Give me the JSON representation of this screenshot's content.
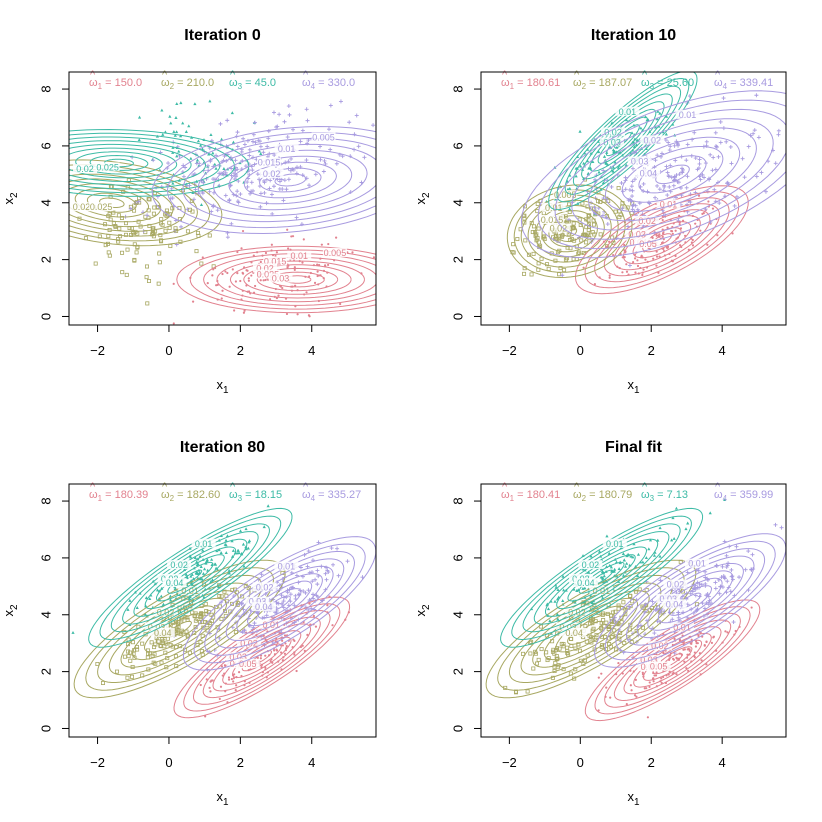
{
  "colors": {
    "c1": "#E2828F",
    "c2": "#A8A862",
    "c3": "#3DBBA6",
    "c4": "#A89BE0"
  },
  "chart_data": {
    "type": "scatter",
    "xlim": [
      -2.8,
      5.8
    ],
    "ylim": [
      -0.3,
      8.6
    ],
    "x_ticks": [
      -2,
      0,
      2,
      4
    ],
    "y_ticks": [
      0,
      2,
      4,
      6,
      8
    ],
    "xlabel": "x",
    "xlabel_sub": "1",
    "ylabel": "x",
    "ylabel_sub": "2",
    "panels": [
      {
        "title": "Iteration 0",
        "weights": [
          {
            "symbol": "ω",
            "sub": "1",
            "value": "150.0",
            "color": "c1"
          },
          {
            "symbol": "ω",
            "sub": "2",
            "value": "210.0",
            "color": "c2"
          },
          {
            "symbol": "ω",
            "sub": "3",
            "value": "45.0",
            "color": "c3"
          },
          {
            "symbol": "ω",
            "sub": "4",
            "value": "330.0",
            "color": "c4"
          }
        ],
        "components": [
          {
            "color": "c1",
            "mean": [
              3.6,
              1.3
            ],
            "sx": 1.3,
            "sy": 0.45,
            "angle": 0,
            "levels": [
              "0.005",
              "0.01",
              "0.015",
              "0.02",
              "0.025",
              "0.03"
            ]
          },
          {
            "color": "c2",
            "mean": [
              -1.6,
              4.0
            ],
            "sx": 0.55,
            "sy": 1.2,
            "angle": 80,
            "levels": [
              "0.005",
              "0.01",
              "0.015",
              "0.02",
              "0.025"
            ]
          },
          {
            "color": "c3",
            "mean": [
              -1.4,
              5.4
            ],
            "sx": 0.45,
            "sy": 1.4,
            "angle": 88,
            "levels": [
              "0.005",
              "0.01",
              "0.015",
              "0.02",
              "0.025"
            ]
          },
          {
            "color": "c4",
            "mean": [
              3.4,
              4.8
            ],
            "sx": 1.5,
            "sy": 0.7,
            "angle": 8,
            "levels": [
              "0.005",
              "0.01",
              "0.015",
              "0.02"
            ]
          }
        ],
        "clusters": [
          {
            "color": "c1",
            "mean": [
              3.0,
              1.5
            ],
            "sx": 1.2,
            "sy": 0.6,
            "angle": 10,
            "n": 150
          },
          {
            "color": "c2",
            "mean": [
              -0.7,
              3.0
            ],
            "sx": 0.8,
            "sy": 0.7,
            "angle": 40,
            "n": 120
          },
          {
            "color": "c3",
            "mean": [
              0.8,
              6.0
            ],
            "sx": 0.8,
            "sy": 0.9,
            "angle": 40,
            "n": 70
          },
          {
            "color": "c4",
            "mean": [
              2.2,
              5.2
            ],
            "sx": 1.5,
            "sy": 0.8,
            "angle": 20,
            "n": 260
          }
        ]
      },
      {
        "title": "Iteration 10",
        "weights": [
          {
            "symbol": "ω",
            "sub": "1",
            "value": "180.61",
            "color": "c1"
          },
          {
            "symbol": "ω",
            "sub": "2",
            "value": "187.07",
            "color": "c2"
          },
          {
            "symbol": "ω",
            "sub": "3",
            "value": "25.60",
            "color": "c3"
          },
          {
            "symbol": "ω",
            "sub": "4",
            "value": "339.41",
            "color": "c4"
          }
        ],
        "components": [
          {
            "color": "c1",
            "mean": [
              2.3,
              2.7
            ],
            "sx": 1.1,
            "sy": 0.45,
            "angle": 35,
            "levels": [
              "0.01",
              "0.02",
              "0.03",
              "0.04",
              "0.05"
            ]
          },
          {
            "color": "c2",
            "mean": [
              -0.3,
              3.0
            ],
            "sx": 0.7,
            "sy": 0.6,
            "angle": 30,
            "levels": [
              "0.005",
              "0.01",
              "0.015",
              "0.02"
            ]
          },
          {
            "color": "c3",
            "mean": [
              1.2,
              6.2
            ],
            "sx": 1.2,
            "sy": 0.3,
            "angle": 50,
            "levels": [
              "0.01",
              "0.02",
              "0.03"
            ]
          },
          {
            "color": "c4",
            "mean": [
              2.6,
              5.0
            ],
            "sx": 1.8,
            "sy": 0.85,
            "angle": 28,
            "levels": [
              "0.01",
              "0.02",
              "0.03",
              "0.04"
            ]
          }
        ],
        "clusters": [
          {
            "color": "c1",
            "mean": [
              2.3,
              2.6
            ],
            "sx": 1.0,
            "sy": 0.45,
            "angle": 35,
            "n": 150
          },
          {
            "color": "c2",
            "mean": [
              -0.3,
              3.1
            ],
            "sx": 0.8,
            "sy": 0.6,
            "angle": 35,
            "n": 150
          },
          {
            "color": "c3",
            "mean": [
              0.9,
              5.6
            ],
            "sx": 1.1,
            "sy": 0.4,
            "angle": 45,
            "n": 110
          },
          {
            "color": "c4",
            "mean": [
              2.5,
              4.8
            ],
            "sx": 1.5,
            "sy": 0.7,
            "angle": 30,
            "n": 220
          }
        ]
      },
      {
        "title": "Iteration 80",
        "weights": [
          {
            "symbol": "ω",
            "sub": "1",
            "value": "180.39",
            "color": "c1"
          },
          {
            "symbol": "ω",
            "sub": "2",
            "value": "182.60",
            "color": "c2"
          },
          {
            "symbol": "ω",
            "sub": "3",
            "value": "18.15",
            "color": "c3"
          },
          {
            "symbol": "ω",
            "sub": "4",
            "value": "335.27",
            "color": "c4"
          }
        ],
        "components": [
          {
            "color": "c1",
            "mean": [
              2.6,
              2.5
            ],
            "sx": 1.2,
            "sy": 0.35,
            "angle": 40,
            "levels": [
              "0.01",
              "0.02",
              "0.03",
              "0.04",
              "0.05"
            ]
          },
          {
            "color": "c2",
            "mean": [
              0.3,
              3.5
            ],
            "sx": 1.4,
            "sy": 0.45,
            "angle": 38,
            "levels": [
              "0.01",
              "0.02",
              "0.03",
              "0.04"
            ]
          },
          {
            "color": "c3",
            "mean": [
              0.6,
              5.3
            ],
            "sx": 1.4,
            "sy": 0.35,
            "angle": 40,
            "levels": [
              "0.01",
              "0.02",
              "0.03",
              "0.04"
            ]
          },
          {
            "color": "c4",
            "mean": [
              3.1,
              4.4
            ],
            "sx": 1.3,
            "sy": 0.45,
            "angle": 40,
            "levels": [
              "0.01",
              "0.02",
              "0.03",
              "0.04"
            ]
          }
        ],
        "clusters": [
          {
            "color": "c1",
            "mean": [
              2.6,
              2.5
            ],
            "sx": 1.0,
            "sy": 0.35,
            "angle": 40,
            "n": 150
          },
          {
            "color": "c2",
            "mean": [
              0.3,
              3.4
            ],
            "sx": 1.2,
            "sy": 0.45,
            "angle": 38,
            "n": 170
          },
          {
            "color": "c3",
            "mean": [
              0.7,
              5.4
            ],
            "sx": 1.2,
            "sy": 0.35,
            "angle": 40,
            "n": 140
          },
          {
            "color": "c4",
            "mean": [
              3.0,
              4.5
            ],
            "sx": 1.2,
            "sy": 0.45,
            "angle": 40,
            "n": 170
          }
        ]
      },
      {
        "title": "Final fit",
        "weights": [
          {
            "symbol": "ω",
            "sub": "1",
            "value": "180.41",
            "color": "c1"
          },
          {
            "symbol": "ω",
            "sub": "2",
            "value": "180.79",
            "color": "c2"
          },
          {
            "symbol": "ω",
            "sub": "3",
            "value": "7.13",
            "color": "c3"
          },
          {
            "symbol": "ω",
            "sub": "4",
            "value": "359.99",
            "color": "c4"
          }
        ],
        "components": [
          {
            "color": "c1",
            "mean": [
              2.6,
              2.4
            ],
            "sx": 1.2,
            "sy": 0.35,
            "angle": 40,
            "levels": [
              "0.01",
              "0.02",
              "0.03",
              "0.04",
              "0.05"
            ]
          },
          {
            "color": "c2",
            "mean": [
              0.3,
              3.5
            ],
            "sx": 1.4,
            "sy": 0.45,
            "angle": 38,
            "levels": [
              "0.01",
              "0.02",
              "0.03",
              "0.04"
            ]
          },
          {
            "color": "c3",
            "mean": [
              0.6,
              5.3
            ],
            "sx": 1.4,
            "sy": 0.35,
            "angle": 40,
            "levels": [
              "0.01",
              "0.02",
              "0.03",
              "0.04"
            ]
          },
          {
            "color": "c4",
            "mean": [
              3.1,
              4.5
            ],
            "sx": 1.3,
            "sy": 0.45,
            "angle": 40,
            "levels": [
              "0.01",
              "0.02",
              "0.03",
              "0.04"
            ]
          }
        ],
        "clusters": [
          {
            "color": "c1",
            "mean": [
              2.6,
              2.4
            ],
            "sx": 1.0,
            "sy": 0.35,
            "angle": 40,
            "n": 150
          },
          {
            "color": "c2",
            "mean": [
              0.3,
              3.4
            ],
            "sx": 1.2,
            "sy": 0.45,
            "angle": 38,
            "n": 170
          },
          {
            "color": "c3",
            "mean": [
              0.7,
              5.4
            ],
            "sx": 1.2,
            "sy": 0.35,
            "angle": 40,
            "n": 140
          },
          {
            "color": "c4",
            "mean": [
              3.0,
              4.5
            ],
            "sx": 1.2,
            "sy": 0.45,
            "angle": 40,
            "n": 170
          }
        ]
      }
    ]
  }
}
